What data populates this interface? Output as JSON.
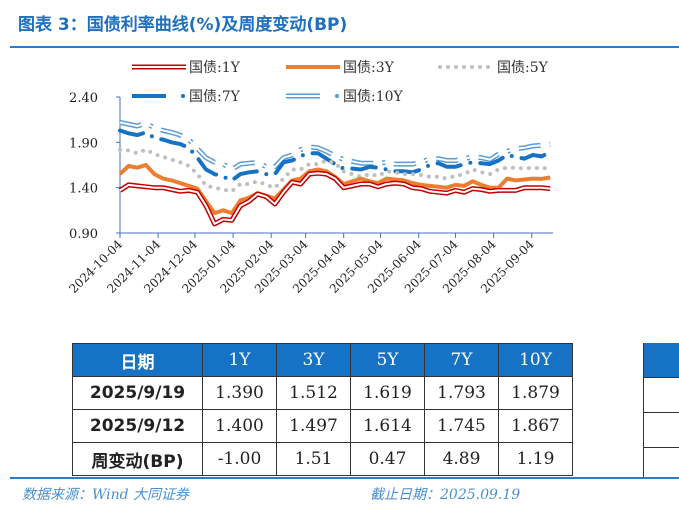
{
  "title": "图表 3：国债利率曲线(%)及周度变动(BP)",
  "chart_data": {
    "type": "line",
    "yticks": [
      "0.90",
      "1.40",
      "1.90",
      "2.40"
    ],
    "ylim": [
      0.9,
      2.4
    ],
    "xticks": [
      "2024-10-04",
      "2024-11-04",
      "2024-12-04",
      "2025-01-04",
      "2025-02-04",
      "2025-03-04",
      "2025-04-04",
      "2025-05-04",
      "2025-06-04",
      "2025-07-04",
      "2025-08-04",
      "2025-09-04"
    ],
    "legend_position": "top",
    "grid": false,
    "x": [
      "2024-10-04",
      "2024-10-11",
      "2024-10-18",
      "2024-10-25",
      "2024-11-01",
      "2024-11-08",
      "2024-11-15",
      "2024-11-22",
      "2024-11-29",
      "2024-12-06",
      "2024-12-13",
      "2024-12-20",
      "2024-12-27",
      "2025-01-03",
      "2025-01-10",
      "2025-01-17",
      "2025-01-24",
      "2025-01-31",
      "2025-02-07",
      "2025-02-14",
      "2025-02-21",
      "2025-02-28",
      "2025-03-07",
      "2025-03-14",
      "2025-03-21",
      "2025-03-28",
      "2025-04-04",
      "2025-04-11",
      "2025-04-18",
      "2025-04-25",
      "2025-05-02",
      "2025-05-09",
      "2025-05-16",
      "2025-05-23",
      "2025-05-30",
      "2025-06-06",
      "2025-06-13",
      "2025-06-20",
      "2025-06-27",
      "2025-07-04",
      "2025-07-11",
      "2025-07-18",
      "2025-07-25",
      "2025-08-01",
      "2025-08-08",
      "2025-08-15",
      "2025-08-22",
      "2025-08-29",
      "2025-09-05",
      "2025-09-12",
      "2025-09-19"
    ],
    "series": [
      {
        "name": "国债:1Y",
        "color": "#c00000",
        "style": "double",
        "values": [
          1.37,
          1.43,
          1.42,
          1.41,
          1.4,
          1.4,
          1.38,
          1.36,
          1.37,
          1.35,
          1.2,
          1.0,
          1.05,
          1.04,
          1.2,
          1.25,
          1.33,
          1.3,
          1.22,
          1.35,
          1.46,
          1.44,
          1.55,
          1.56,
          1.55,
          1.5,
          1.4,
          1.42,
          1.44,
          1.44,
          1.41,
          1.44,
          1.45,
          1.44,
          1.4,
          1.39,
          1.36,
          1.35,
          1.34,
          1.37,
          1.35,
          1.39,
          1.38,
          1.36,
          1.37,
          1.37,
          1.37,
          1.4,
          1.4,
          1.4,
          1.39
        ]
      },
      {
        "name": "国债:3Y",
        "color": "#ed7d31",
        "style": "solid",
        "values": [
          1.55,
          1.64,
          1.62,
          1.65,
          1.55,
          1.5,
          1.48,
          1.45,
          1.42,
          1.39,
          1.25,
          1.12,
          1.15,
          1.12,
          1.26,
          1.29,
          1.34,
          1.31,
          1.28,
          1.38,
          1.48,
          1.5,
          1.58,
          1.6,
          1.58,
          1.52,
          1.44,
          1.47,
          1.5,
          1.47,
          1.45,
          1.5,
          1.49,
          1.48,
          1.45,
          1.43,
          1.42,
          1.41,
          1.4,
          1.43,
          1.42,
          1.47,
          1.43,
          1.4,
          1.4,
          1.5,
          1.48,
          1.49,
          1.5,
          1.497,
          1.512
        ]
      },
      {
        "name": "国债:5Y",
        "color": "#bfbfbf",
        "style": "dotted",
        "values": [
          1.82,
          1.81,
          1.78,
          1.82,
          1.77,
          1.74,
          1.71,
          1.68,
          1.64,
          1.55,
          1.42,
          1.4,
          1.38,
          1.36,
          1.44,
          1.44,
          1.47,
          1.43,
          1.4,
          1.5,
          1.6,
          1.6,
          1.66,
          1.66,
          1.7,
          1.67,
          1.58,
          1.55,
          1.52,
          1.55,
          1.53,
          1.58,
          1.57,
          1.55,
          1.55,
          1.54,
          1.52,
          1.52,
          1.5,
          1.53,
          1.55,
          1.6,
          1.57,
          1.55,
          1.6,
          1.62,
          1.62,
          1.61,
          1.62,
          1.614,
          1.619
        ]
      },
      {
        "name": "国债:7Y",
        "color": "#1572c4",
        "style": "dashdot",
        "values": [
          2.03,
          2.0,
          1.98,
          2.01,
          1.95,
          1.93,
          1.9,
          1.88,
          1.84,
          1.73,
          1.6,
          1.55,
          1.52,
          1.48,
          1.55,
          1.57,
          1.58,
          1.55,
          1.55,
          1.68,
          1.7,
          1.75,
          1.78,
          1.78,
          1.72,
          1.66,
          1.61,
          1.61,
          1.6,
          1.63,
          1.62,
          1.6,
          1.58,
          1.58,
          1.57,
          1.6,
          1.65,
          1.67,
          1.63,
          1.63,
          1.66,
          1.68,
          1.67,
          1.66,
          1.7,
          1.76,
          1.74,
          1.72,
          1.76,
          1.745,
          1.793
        ]
      },
      {
        "name": "国债:10Y",
        "color": "#5b9bd5",
        "style": "double-dashdot",
        "values": [
          2.12,
          2.1,
          2.08,
          2.11,
          2.06,
          2.03,
          2.01,
          1.98,
          1.93,
          1.83,
          1.73,
          1.68,
          1.66,
          1.6,
          1.66,
          1.67,
          1.68,
          1.63,
          1.63,
          1.73,
          1.76,
          1.82,
          1.85,
          1.84,
          1.8,
          1.75,
          1.71,
          1.69,
          1.67,
          1.67,
          1.67,
          1.68,
          1.66,
          1.66,
          1.66,
          1.68,
          1.72,
          1.72,
          1.7,
          1.7,
          1.72,
          1.74,
          1.73,
          1.71,
          1.77,
          1.8,
          1.83,
          1.84,
          1.86,
          1.867,
          1.879
        ]
      }
    ]
  },
  "table": {
    "headers": [
      "日期",
      "1Y",
      "3Y",
      "5Y",
      "7Y",
      "10Y"
    ],
    "rows": [
      [
        "2025/9/19",
        "1.390",
        "1.512",
        "1.619",
        "1.793",
        "1.879"
      ],
      [
        "2025/9/12",
        "1.400",
        "1.497",
        "1.614",
        "1.745",
        "1.867"
      ],
      [
        "周变动(BP)",
        "-1.00",
        "1.51",
        "0.47",
        "4.89",
        "1.19"
      ]
    ]
  },
  "footer": {
    "source": "数据来源：Wind 大同证券",
    "date": "截止日期：2025.09.19"
  }
}
